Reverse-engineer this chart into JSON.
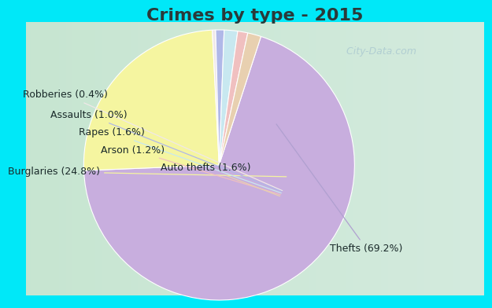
{
  "title": "Crimes by type - 2015",
  "labels": [
    "Thefts (69.2%)",
    "Burglaries (24.8%)",
    "Robberies (0.4%)",
    "Assaults (1.0%)",
    "Rapes (1.6%)",
    "Arson (1.2%)",
    "Auto thefts (1.6%)"
  ],
  "values": [
    69.2,
    24.8,
    0.4,
    1.0,
    1.6,
    1.2,
    1.6
  ],
  "colors": [
    "#c8aede",
    "#f5f5a0",
    "#f0e8e8",
    "#b0b8e8",
    "#c8e8f0",
    "#f0c0c0",
    "#e8d0b0"
  ],
  "title_fontsize": 16,
  "title_color": "#2a3a3a",
  "background_border": "#00e8f8",
  "watermark": "  City-Data.com",
  "label_fontsize": 9,
  "border_thickness": 10
}
